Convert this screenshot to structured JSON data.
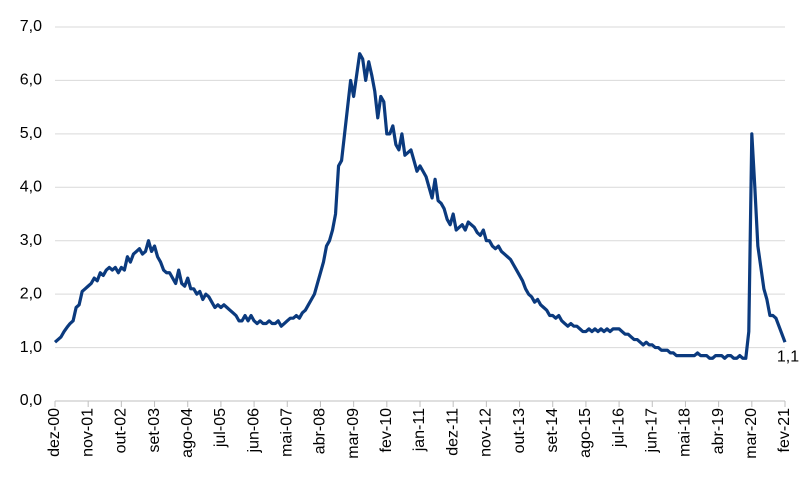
{
  "chart_data": {
    "type": "line",
    "categories": [
      "dez-00",
      null,
      null,
      null,
      null,
      null,
      null,
      null,
      null,
      null,
      null,
      "nov-01",
      null,
      null,
      null,
      null,
      null,
      null,
      null,
      null,
      null,
      null,
      "out-02",
      null,
      null,
      null,
      null,
      null,
      null,
      null,
      null,
      null,
      null,
      "set-03",
      null,
      null,
      null,
      null,
      null,
      null,
      null,
      null,
      null,
      null,
      "ago-04",
      null,
      null,
      null,
      null,
      null,
      null,
      null,
      null,
      null,
      null,
      "jul-05",
      null,
      null,
      null,
      null,
      null,
      null,
      null,
      null,
      null,
      null,
      "jun-06",
      null,
      null,
      null,
      null,
      null,
      null,
      null,
      null,
      null,
      null,
      "mai-07",
      null,
      null,
      null,
      null,
      null,
      null,
      null,
      null,
      null,
      null,
      "abr-08",
      null,
      null,
      null,
      null,
      null,
      null,
      null,
      null,
      null,
      null,
      "mar-09",
      null,
      null,
      null,
      null,
      null,
      null,
      null,
      null,
      null,
      null,
      "fev-10",
      null,
      null,
      null,
      null,
      null,
      null,
      null,
      null,
      null,
      null,
      "jan-11",
      null,
      null,
      null,
      null,
      null,
      null,
      null,
      null,
      null,
      null,
      "dez-11",
      null,
      null,
      null,
      null,
      null,
      null,
      null,
      null,
      null,
      null,
      "nov-12",
      null,
      null,
      null,
      null,
      null,
      null,
      null,
      null,
      null,
      null,
      "out-13",
      null,
      null,
      null,
      null,
      null,
      null,
      null,
      null,
      null,
      null,
      "set-14",
      null,
      null,
      null,
      null,
      null,
      null,
      null,
      null,
      null,
      null,
      "ago-15",
      null,
      null,
      null,
      null,
      null,
      null,
      null,
      null,
      null,
      null,
      "jul-16",
      null,
      null,
      null,
      null,
      null,
      null,
      null,
      null,
      null,
      null,
      "jun-17",
      null,
      null,
      null,
      null,
      null,
      null,
      null,
      null,
      null,
      null,
      "mai-18",
      null,
      null,
      null,
      null,
      null,
      null,
      null,
      null,
      null,
      null,
      "abr-19",
      null,
      null,
      null,
      null,
      null,
      null,
      null,
      null,
      null,
      null,
      "mar-20",
      null,
      null,
      null,
      null,
      null,
      null,
      null,
      null,
      null,
      null,
      "fev-21"
    ],
    "series": [
      {
        "color": "#0b3a7e",
        "values": [
          1.1,
          1.15,
          1.2,
          1.3,
          1.38,
          1.45,
          1.5,
          1.75,
          1.8,
          2.05,
          2.1,
          2.15,
          2.2,
          2.3,
          2.25,
          2.4,
          2.35,
          2.45,
          2.5,
          2.45,
          2.5,
          2.4,
          2.5,
          2.45,
          2.7,
          2.6,
          2.75,
          2.8,
          2.85,
          2.75,
          2.8,
          3.0,
          2.8,
          2.9,
          2.7,
          2.6,
          2.45,
          2.4,
          2.4,
          2.3,
          2.2,
          2.45,
          2.2,
          2.15,
          2.3,
          2.1,
          2.1,
          2.0,
          2.05,
          1.9,
          2.0,
          1.95,
          1.85,
          1.75,
          1.8,
          1.75,
          1.8,
          1.75,
          1.7,
          1.65,
          1.6,
          1.5,
          1.5,
          1.6,
          1.5,
          1.6,
          1.5,
          1.45,
          1.5,
          1.45,
          1.45,
          1.5,
          1.45,
          1.45,
          1.5,
          1.4,
          1.45,
          1.5,
          1.55,
          1.55,
          1.6,
          1.55,
          1.65,
          1.7,
          1.8,
          1.9,
          2.0,
          2.2,
          2.4,
          2.6,
          2.9,
          3.0,
          3.2,
          3.5,
          4.4,
          4.5,
          5.0,
          5.5,
          6.0,
          5.7,
          6.1,
          6.5,
          6.4,
          6.0,
          6.35,
          6.1,
          5.8,
          5.3,
          5.7,
          5.6,
          5.0,
          5.0,
          5.15,
          4.8,
          4.7,
          5.0,
          4.6,
          4.65,
          4.7,
          4.5,
          4.3,
          4.4,
          4.3,
          4.2,
          4.0,
          3.8,
          4.15,
          3.75,
          3.7,
          3.6,
          3.4,
          3.3,
          3.5,
          3.2,
          3.25,
          3.3,
          3.2,
          3.35,
          3.3,
          3.25,
          3.15,
          3.1,
          3.2,
          3.0,
          3.0,
          2.9,
          2.85,
          2.9,
          2.8,
          2.75,
          2.7,
          2.65,
          2.55,
          2.45,
          2.35,
          2.25,
          2.1,
          2.0,
          1.95,
          1.85,
          1.9,
          1.8,
          1.75,
          1.7,
          1.6,
          1.6,
          1.55,
          1.6,
          1.5,
          1.45,
          1.4,
          1.45,
          1.4,
          1.4,
          1.35,
          1.3,
          1.3,
          1.35,
          1.3,
          1.35,
          1.3,
          1.35,
          1.3,
          1.35,
          1.3,
          1.35,
          1.35,
          1.35,
          1.3,
          1.25,
          1.25,
          1.2,
          1.15,
          1.15,
          1.1,
          1.05,
          1.1,
          1.05,
          1.05,
          1.0,
          1.0,
          0.95,
          0.95,
          0.95,
          0.9,
          0.9,
          0.85,
          0.85,
          0.85,
          0.85,
          0.85,
          0.85,
          0.85,
          0.9,
          0.85,
          0.85,
          0.85,
          0.8,
          0.8,
          0.85,
          0.85,
          0.85,
          0.8,
          0.85,
          0.85,
          0.8,
          0.8,
          0.85,
          0.8,
          0.8,
          1.3,
          5.0,
          4.0,
          2.9,
          2.5,
          2.1,
          1.9,
          1.6,
          1.6,
          1.55,
          1.4,
          1.25,
          1.1
        ],
        "value_labels": [
          null,
          null,
          null,
          null,
          null,
          null,
          null,
          null,
          null,
          null,
          null,
          null,
          null,
          null,
          null,
          null,
          null,
          null,
          null,
          null,
          null,
          null,
          null,
          null,
          null,
          null,
          null,
          null,
          null,
          null,
          null,
          null,
          null,
          null,
          null,
          null,
          null,
          null,
          null,
          null,
          null,
          null,
          null,
          null,
          null,
          null,
          null,
          null,
          null,
          null,
          null,
          null,
          null,
          null,
          null,
          null,
          null,
          null,
          null,
          null,
          null,
          null,
          null,
          null,
          null,
          null,
          null,
          null,
          null,
          null,
          null,
          null,
          null,
          null,
          null,
          null,
          null,
          null,
          null,
          null,
          null,
          null,
          null,
          null,
          null,
          null,
          null,
          null,
          null,
          null,
          null,
          null,
          null,
          null,
          null,
          null,
          null,
          null,
          null,
          null,
          null,
          null,
          null,
          null,
          null,
          null,
          null,
          null,
          null,
          null,
          null,
          null,
          null,
          null,
          null,
          null,
          null,
          null,
          null,
          null,
          null,
          null,
          null,
          null,
          null,
          null,
          null,
          null,
          null,
          null,
          null,
          null,
          null,
          null,
          null,
          null,
          null,
          null,
          null,
          null,
          null,
          null,
          null,
          null,
          null,
          null,
          null,
          null,
          null,
          null,
          null,
          null,
          null,
          null,
          null,
          null,
          null,
          null,
          null,
          null,
          null,
          null,
          null,
          null,
          null,
          null,
          null,
          null,
          null,
          null,
          null,
          null,
          null,
          null,
          null,
          null,
          null,
          null,
          null,
          null,
          null,
          null,
          null,
          null,
          null,
          null,
          null,
          null,
          null,
          null,
          null,
          null,
          null,
          null,
          null,
          null,
          null,
          null,
          null,
          null,
          null,
          null,
          null,
          null,
          null,
          null,
          null,
          null,
          null,
          null,
          null,
          null,
          null,
          null,
          null,
          null,
          null,
          null,
          null,
          null,
          null,
          null,
          null,
          null,
          null,
          null,
          null,
          null,
          null,
          null,
          null,
          null,
          null,
          null,
          null,
          null,
          null,
          null,
          null,
          null,
          null,
          null,
          "1,1"
        ]
      }
    ],
    "ylim": [
      0,
      7
    ],
    "yticks": [
      {
        "value": 0,
        "label": "0,0"
      },
      {
        "value": 1,
        "label": "1,0"
      },
      {
        "value": 2,
        "label": "2,0"
      },
      {
        "value": 3,
        "label": "3,0"
      },
      {
        "value": 4,
        "label": "4,0"
      },
      {
        "value": 5,
        "label": "5,0"
      },
      {
        "value": 6,
        "label": "6,0"
      },
      {
        "value": 7,
        "label": "7,0"
      }
    ],
    "grid": true
  }
}
